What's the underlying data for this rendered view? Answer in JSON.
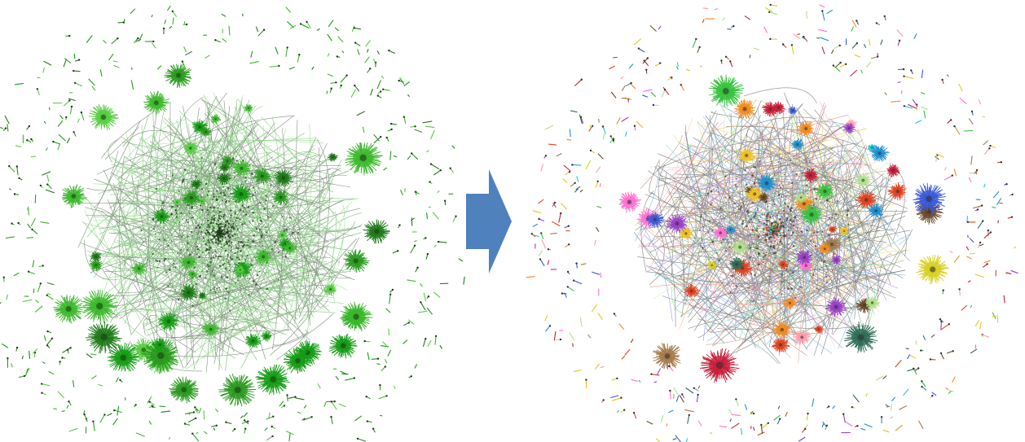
{
  "figure": {
    "panels": [
      {
        "id": "before",
        "palette": [
          "#2a9a1f",
          "#3cb82c",
          "#1f7a18",
          "#55cc40",
          "#149c14"
        ]
      },
      {
        "id": "after",
        "palette": [
          "#1ec8d8",
          "#ff6fd0",
          "#2e6b55",
          "#d6d021",
          "#e0421f",
          "#3a58d8",
          "#f28a1e",
          "#34c23c",
          "#9b3ec8",
          "#a37a4a",
          "#b0e08a",
          "#c81e3a",
          "#1e8fd0",
          "#ff9aa8",
          "#6a4a2a",
          "#f0c020"
        ]
      }
    ],
    "arrow": {
      "color": "#4f81bd",
      "direction": "right"
    }
  }
}
